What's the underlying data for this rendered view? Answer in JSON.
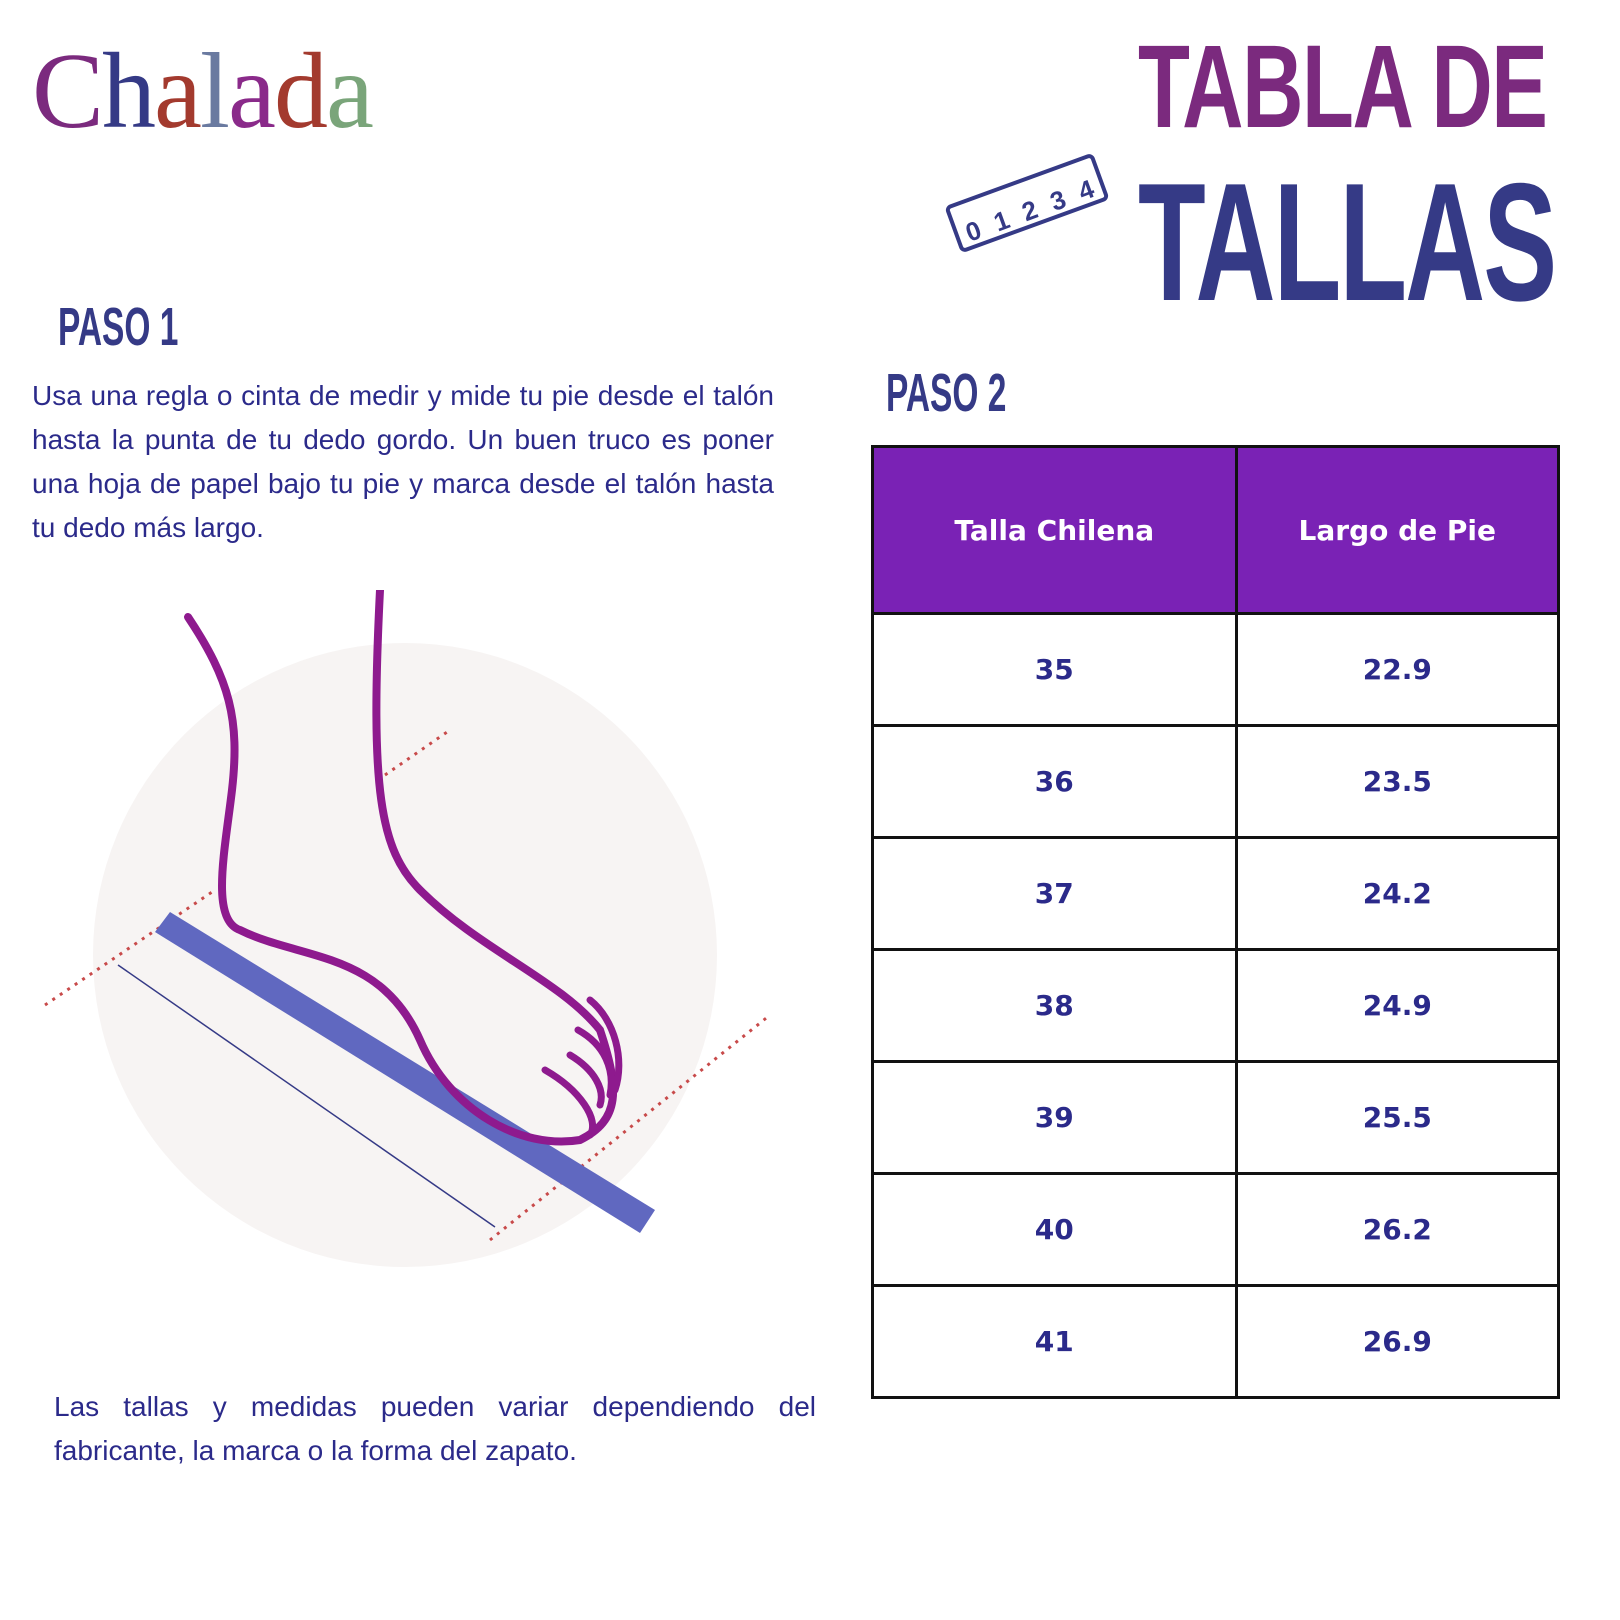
{
  "brand": {
    "logo": "Chalada",
    "colors": [
      "#7b2a7e",
      "#353a86",
      "#a33a2e",
      "#6a7aa0",
      "#8a2a8a",
      "#a33a2e",
      "#7aa57a",
      "#a33a2e"
    ]
  },
  "title": {
    "line1": "TABLA DE",
    "line2": "TALLAS",
    "ruler_marks": [
      "0",
      "1",
      "2",
      "3",
      "4"
    ]
  },
  "step1": {
    "heading": "PASO 1",
    "text": "Usa una regla o cinta de medir y mide tu pie desde el talón hasta la punta de tu dedo gordo. Un buen truco es poner una hoja de papel bajo tu pie y marca desde el talón hasta tu dedo más largo."
  },
  "disclaimer": "Las tallas y medidas pueden variar dependiendo del fabricante, la marca o la forma del zapato.",
  "step2": {
    "heading": "PASO 2"
  },
  "size_table": {
    "headers": [
      "Talla Chilena",
      "Largo de Pie"
    ],
    "rows": [
      [
        "35",
        "22.9"
      ],
      [
        "36",
        "23.5"
      ],
      [
        "37",
        "24.2"
      ],
      [
        "38",
        "24.9"
      ],
      [
        "39",
        "25.5"
      ],
      [
        "40",
        "26.2"
      ],
      [
        "41",
        "26.9"
      ]
    ]
  },
  "colors": {
    "header_bg": "#7a22b5",
    "text": "#2b2a8a",
    "heading": "#353a86",
    "foot": "#8e1a8e",
    "ruler": "#6068c0"
  }
}
